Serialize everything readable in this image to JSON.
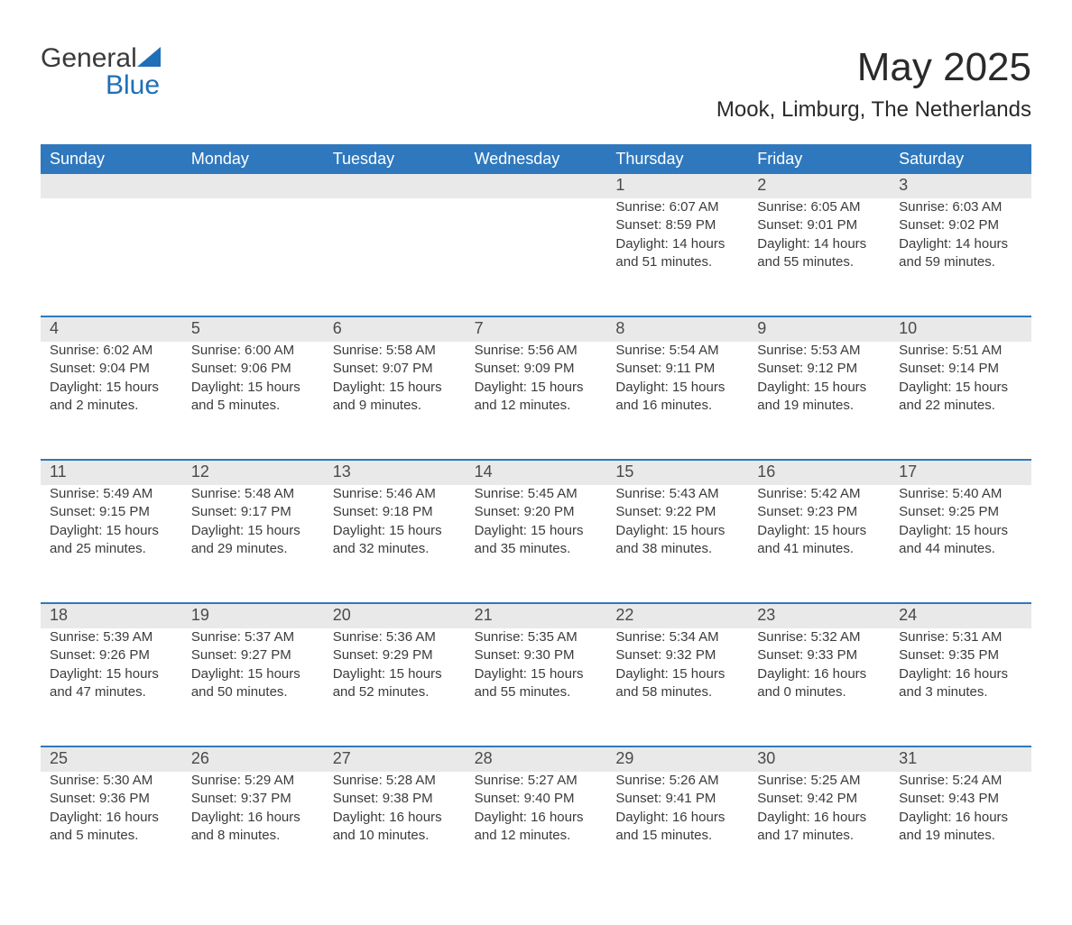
{
  "logo": {
    "word1": "General",
    "word2": "Blue"
  },
  "colors": {
    "brand_blue": "#2f78bd",
    "header_text": "#ffffff",
    "daynum_bg": "#e9e9e9",
    "text": "#3a3a3a",
    "rule": "#2f78bd"
  },
  "title": "May 2025",
  "subtitle": "Mook, Limburg, The Netherlands",
  "day_headers": [
    "Sunday",
    "Monday",
    "Tuesday",
    "Wednesday",
    "Thursday",
    "Friday",
    "Saturday"
  ],
  "weeks": [
    {
      "daynums": [
        "",
        "",
        "",
        "",
        "1",
        "2",
        "3"
      ],
      "cells": [
        {
          "sunrise": "",
          "sunset": "",
          "daylight": ""
        },
        {
          "sunrise": "",
          "sunset": "",
          "daylight": ""
        },
        {
          "sunrise": "",
          "sunset": "",
          "daylight": ""
        },
        {
          "sunrise": "",
          "sunset": "",
          "daylight": ""
        },
        {
          "sunrise": "Sunrise: 6:07 AM",
          "sunset": "Sunset: 8:59 PM",
          "daylight": "Daylight: 14 hours and 51 minutes."
        },
        {
          "sunrise": "Sunrise: 6:05 AM",
          "sunset": "Sunset: 9:01 PM",
          "daylight": "Daylight: 14 hours and 55 minutes."
        },
        {
          "sunrise": "Sunrise: 6:03 AM",
          "sunset": "Sunset: 9:02 PM",
          "daylight": "Daylight: 14 hours and 59 minutes."
        }
      ]
    },
    {
      "daynums": [
        "4",
        "5",
        "6",
        "7",
        "8",
        "9",
        "10"
      ],
      "cells": [
        {
          "sunrise": "Sunrise: 6:02 AM",
          "sunset": "Sunset: 9:04 PM",
          "daylight": "Daylight: 15 hours and 2 minutes."
        },
        {
          "sunrise": "Sunrise: 6:00 AM",
          "sunset": "Sunset: 9:06 PM",
          "daylight": "Daylight: 15 hours and 5 minutes."
        },
        {
          "sunrise": "Sunrise: 5:58 AM",
          "sunset": "Sunset: 9:07 PM",
          "daylight": "Daylight: 15 hours and 9 minutes."
        },
        {
          "sunrise": "Sunrise: 5:56 AM",
          "sunset": "Sunset: 9:09 PM",
          "daylight": "Daylight: 15 hours and 12 minutes."
        },
        {
          "sunrise": "Sunrise: 5:54 AM",
          "sunset": "Sunset: 9:11 PM",
          "daylight": "Daylight: 15 hours and 16 minutes."
        },
        {
          "sunrise": "Sunrise: 5:53 AM",
          "sunset": "Sunset: 9:12 PM",
          "daylight": "Daylight: 15 hours and 19 minutes."
        },
        {
          "sunrise": "Sunrise: 5:51 AM",
          "sunset": "Sunset: 9:14 PM",
          "daylight": "Daylight: 15 hours and 22 minutes."
        }
      ]
    },
    {
      "daynums": [
        "11",
        "12",
        "13",
        "14",
        "15",
        "16",
        "17"
      ],
      "cells": [
        {
          "sunrise": "Sunrise: 5:49 AM",
          "sunset": "Sunset: 9:15 PM",
          "daylight": "Daylight: 15 hours and 25 minutes."
        },
        {
          "sunrise": "Sunrise: 5:48 AM",
          "sunset": "Sunset: 9:17 PM",
          "daylight": "Daylight: 15 hours and 29 minutes."
        },
        {
          "sunrise": "Sunrise: 5:46 AM",
          "sunset": "Sunset: 9:18 PM",
          "daylight": "Daylight: 15 hours and 32 minutes."
        },
        {
          "sunrise": "Sunrise: 5:45 AM",
          "sunset": "Sunset: 9:20 PM",
          "daylight": "Daylight: 15 hours and 35 minutes."
        },
        {
          "sunrise": "Sunrise: 5:43 AM",
          "sunset": "Sunset: 9:22 PM",
          "daylight": "Daylight: 15 hours and 38 minutes."
        },
        {
          "sunrise": "Sunrise: 5:42 AM",
          "sunset": "Sunset: 9:23 PM",
          "daylight": "Daylight: 15 hours and 41 minutes."
        },
        {
          "sunrise": "Sunrise: 5:40 AM",
          "sunset": "Sunset: 9:25 PM",
          "daylight": "Daylight: 15 hours and 44 minutes."
        }
      ]
    },
    {
      "daynums": [
        "18",
        "19",
        "20",
        "21",
        "22",
        "23",
        "24"
      ],
      "cells": [
        {
          "sunrise": "Sunrise: 5:39 AM",
          "sunset": "Sunset: 9:26 PM",
          "daylight": "Daylight: 15 hours and 47 minutes."
        },
        {
          "sunrise": "Sunrise: 5:37 AM",
          "sunset": "Sunset: 9:27 PM",
          "daylight": "Daylight: 15 hours and 50 minutes."
        },
        {
          "sunrise": "Sunrise: 5:36 AM",
          "sunset": "Sunset: 9:29 PM",
          "daylight": "Daylight: 15 hours and 52 minutes."
        },
        {
          "sunrise": "Sunrise: 5:35 AM",
          "sunset": "Sunset: 9:30 PM",
          "daylight": "Daylight: 15 hours and 55 minutes."
        },
        {
          "sunrise": "Sunrise: 5:34 AM",
          "sunset": "Sunset: 9:32 PM",
          "daylight": "Daylight: 15 hours and 58 minutes."
        },
        {
          "sunrise": "Sunrise: 5:32 AM",
          "sunset": "Sunset: 9:33 PM",
          "daylight": "Daylight: 16 hours and 0 minutes."
        },
        {
          "sunrise": "Sunrise: 5:31 AM",
          "sunset": "Sunset: 9:35 PM",
          "daylight": "Daylight: 16 hours and 3 minutes."
        }
      ]
    },
    {
      "daynums": [
        "25",
        "26",
        "27",
        "28",
        "29",
        "30",
        "31"
      ],
      "cells": [
        {
          "sunrise": "Sunrise: 5:30 AM",
          "sunset": "Sunset: 9:36 PM",
          "daylight": "Daylight: 16 hours and 5 minutes."
        },
        {
          "sunrise": "Sunrise: 5:29 AM",
          "sunset": "Sunset: 9:37 PM",
          "daylight": "Daylight: 16 hours and 8 minutes."
        },
        {
          "sunrise": "Sunrise: 5:28 AM",
          "sunset": "Sunset: 9:38 PM",
          "daylight": "Daylight: 16 hours and 10 minutes."
        },
        {
          "sunrise": "Sunrise: 5:27 AM",
          "sunset": "Sunset: 9:40 PM",
          "daylight": "Daylight: 16 hours and 12 minutes."
        },
        {
          "sunrise": "Sunrise: 5:26 AM",
          "sunset": "Sunset: 9:41 PM",
          "daylight": "Daylight: 16 hours and 15 minutes."
        },
        {
          "sunrise": "Sunrise: 5:25 AM",
          "sunset": "Sunset: 9:42 PM",
          "daylight": "Daylight: 16 hours and 17 minutes."
        },
        {
          "sunrise": "Sunrise: 5:24 AM",
          "sunset": "Sunset: 9:43 PM",
          "daylight": "Daylight: 16 hours and 19 minutes."
        }
      ]
    }
  ]
}
